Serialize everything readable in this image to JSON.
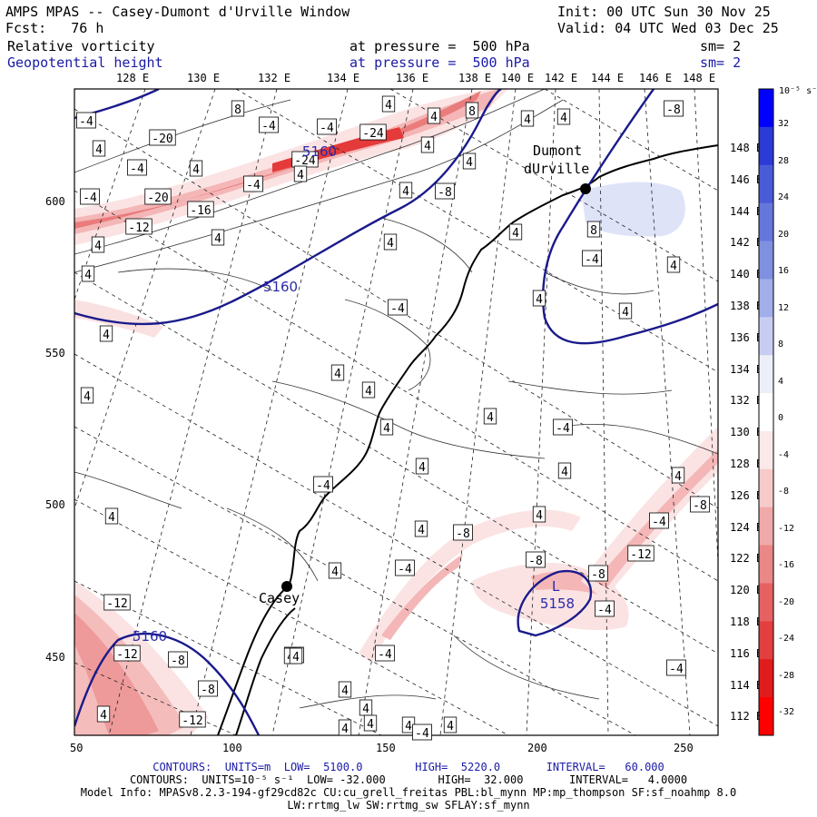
{
  "header": {
    "title": "AMPS MPAS -- Casey-Dumont d'Urville Window",
    "forecast": "Fcst:   76 h",
    "init": "Init: 00 UTC Sun 30 Nov 25",
    "valid": "Valid: 04 UTC Wed 03 Dec 25",
    "field1_name": "Relative vorticity",
    "field1_level": "at pressure =  500 hPa",
    "field1_smooth": "sm= 2",
    "field2_name": "Geopotential height",
    "field2_level": "at pressure =  500 hPa",
    "field2_smooth": "sm= 2"
  },
  "map": {
    "top_longitude_ticks": [
      "128 E",
      "130 E",
      "132 E",
      "134 E",
      "136 E",
      "138 E",
      "140 E",
      "142 E",
      "144 E",
      "146 E",
      "148 E"
    ],
    "right_latitude_ticks": [
      "148 E",
      "146 E",
      "144 E",
      "142 E",
      "140 E",
      "138 E",
      "136 E",
      "134 E",
      "132 E",
      "130 E",
      "128 E",
      "126 E",
      "124 E",
      "122 E",
      "120 E",
      "118 E",
      "116 E",
      "114 E",
      "112 E"
    ],
    "x_axis_ticks": [
      "50",
      "100",
      "150",
      "200",
      "250"
    ],
    "y_axis_ticks": [
      "600",
      "550",
      "500",
      "450"
    ],
    "stations": [
      {
        "name": "Dumont",
        "name2": "dUrville"
      },
      {
        "name": "Casey",
        "name2": ""
      }
    ],
    "height_labels": [
      "5160",
      "5160",
      "5160",
      "5158"
    ],
    "low_marker": "L",
    "vorticity_labels": [
      "-4",
      "8",
      "-4",
      "4",
      "4",
      "-8",
      "-20",
      "-4",
      "4",
      "4",
      "8",
      "4",
      "-24",
      "-24",
      "4",
      "4",
      "-4",
      "4",
      "4",
      "-8",
      "-20",
      "-4",
      "4",
      "-4",
      "-12",
      "-16",
      "4",
      "4",
      "4",
      "8",
      "4",
      "-4",
      "4",
      "4",
      "4",
      "4",
      "-4",
      "4",
      "4",
      "4",
      "4",
      "4",
      "-4",
      "4",
      "4",
      "-4",
      "4",
      "4",
      "4",
      "-8",
      "4",
      "4",
      "4",
      "-4",
      "-8",
      "-12",
      "-4",
      "-8",
      "-8",
      "-4",
      "-12",
      "-4",
      "-12",
      "-8",
      "-8",
      "-4",
      "-12",
      "4",
      "4",
      "4",
      "-4",
      "4",
      "4",
      "4",
      "4",
      "-4",
      "4",
      "4"
    ]
  },
  "colorbar": {
    "unit": "10⁻⁵ s⁻¹",
    "labels": [
      "32",
      "28",
      "24",
      "20",
      "16",
      "12",
      "8",
      "4",
      "0",
      "-4",
      "-8",
      "-12",
      "-16",
      "-20",
      "-24",
      "-28",
      "-32"
    ],
    "colors": [
      "#0000ff",
      "#2a3bd6",
      "#4a5bd8",
      "#6677dc",
      "#8090e0",
      "#a2aeea",
      "#c7cdf2",
      "#eceef8",
      "#ffffff",
      "#fbe8e8",
      "#f6caca",
      "#f0a9a9",
      "#ea8787",
      "#e66262",
      "#e23f3f",
      "#e01c1c",
      "#ff0000"
    ]
  },
  "footer": {
    "line1": "CONTOURS:  UNITS=m  LOW=  5100.0        HIGH=  5220.0       INTERVAL=   60.000",
    "line2": "CONTOURS:  UNITS=10⁻⁵ s⁻¹  LOW= -32.000        HIGH=  32.000       INTERVAL=   4.0000",
    "line3": "Model Info: MPASv8.2.3-194-gf29cd82c CU:cu_grell_freitas PBL:bl_mynn MP:mp_thompson SF:sf_noahmp 8.0",
    "line4": "LW:rrtmg_lw SW:rrtmg_sw SFLAY:sf_mynn"
  }
}
